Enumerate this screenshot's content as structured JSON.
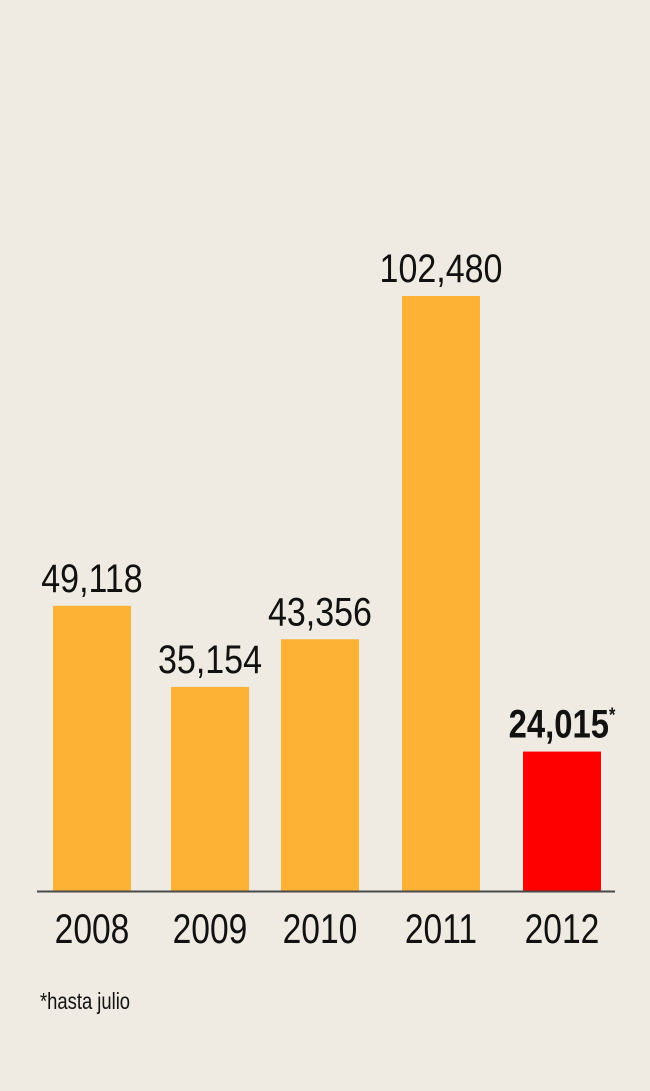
{
  "chart_data": {
    "type": "bar",
    "categories": [
      "2008",
      "2009",
      "2010",
      "2011",
      "2012"
    ],
    "values": [
      49118,
      35154,
      43356,
      102480,
      24015
    ],
    "data_labels": [
      "49,118",
      "35,154",
      "43,356",
      "102,480",
      "24,015"
    ],
    "label_suffix": [
      "",
      "",
      "",
      "",
      "*"
    ],
    "highlight_index": 4,
    "colors": {
      "default": "#fdb135",
      "highlight": "#ff0000",
      "axis": "#4a4a4a",
      "background": "#efebe2"
    },
    "title": "",
    "xlabel": "",
    "ylabel": "",
    "ylim": [
      0,
      102480
    ],
    "grid": false,
    "footnote": "*hasta julio"
  }
}
